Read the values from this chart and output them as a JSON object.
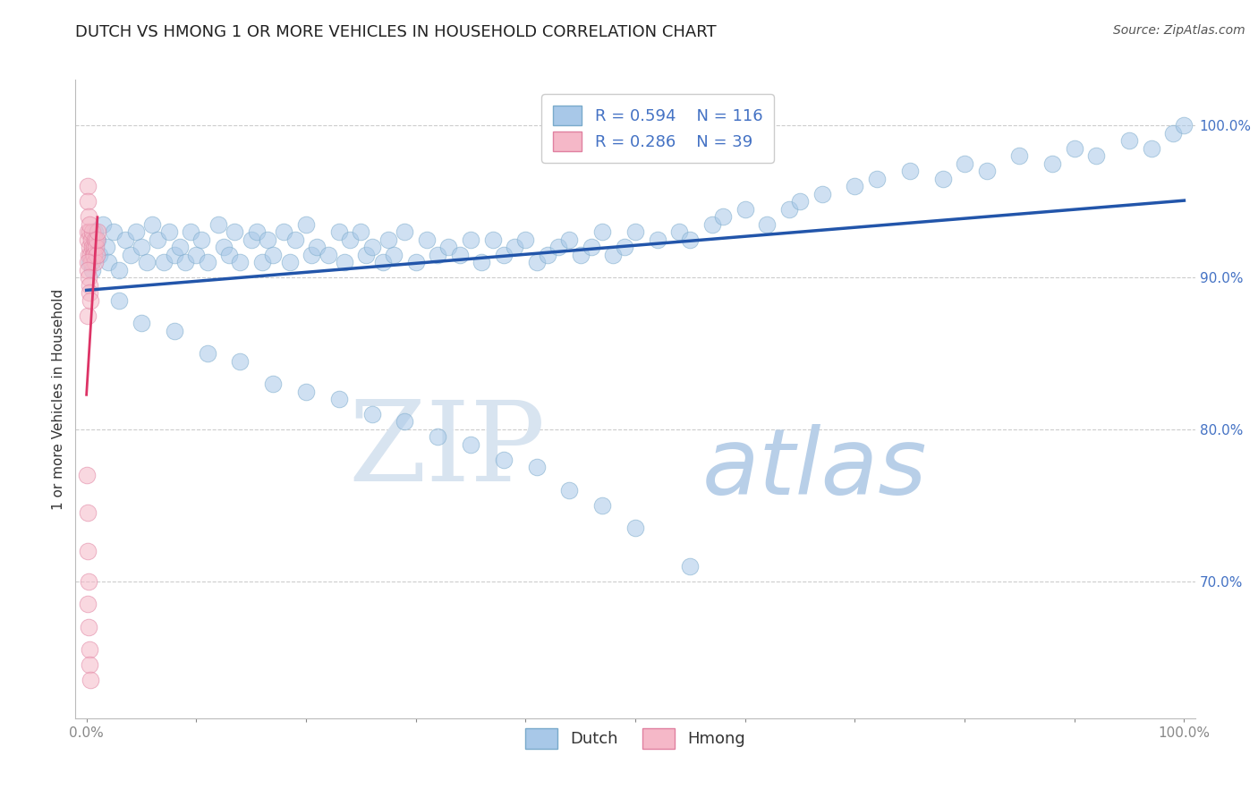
{
  "title": "DUTCH VS HMONG 1 OR MORE VEHICLES IN HOUSEHOLD CORRELATION CHART",
  "source_text": "Source: ZipAtlas.com",
  "ylabel": "1 or more Vehicles in Household",
  "xlim": [
    -1,
    101
  ],
  "ylim": [
    61,
    103
  ],
  "ytick_vals": [
    70.0,
    80.0,
    90.0,
    100.0
  ],
  "ytick_labels": [
    "70.0%",
    "80.0%",
    "90.0%",
    "100.0%"
  ],
  "xtick_vals": [
    0,
    10,
    20,
    30,
    40,
    50,
    60,
    70,
    80,
    90,
    100
  ],
  "xtick_labels": [
    "0.0%",
    "",
    "",
    "",
    "",
    "",
    "",
    "",
    "",
    "",
    "100.0%"
  ],
  "background_color": "#ffffff",
  "watermark_zip": "ZIP",
  "watermark_atlas": "atlas",
  "watermark_zip_color": "#d8e4f0",
  "watermark_atlas_color": "#b8cfe8",
  "dutch_color": "#a8c8e8",
  "dutch_edge_color": "#7aaacb",
  "hmong_color": "#f5b8c8",
  "hmong_edge_color": "#e080a0",
  "trendline_dutch_color": "#2255aa",
  "trendline_hmong_color": "#dd3366",
  "R_dutch": 0.594,
  "N_dutch": 116,
  "R_hmong": 0.286,
  "N_hmong": 39,
  "grid_color": "#cccccc",
  "ytick_color": "#4472c4",
  "title_fontsize": 13,
  "source_fontsize": 10,
  "legend_fontsize": 13,
  "circle_size": 180,
  "circle_alpha": 0.55,
  "dutch_x": [
    0.3,
    0.5,
    0.8,
    1.0,
    1.2,
    1.5,
    1.8,
    2.0,
    2.5,
    3.0,
    3.5,
    4.0,
    4.5,
    5.0,
    5.5,
    6.0,
    6.5,
    7.0,
    7.5,
    8.0,
    8.5,
    9.0,
    9.5,
    10.0,
    10.5,
    11.0,
    12.0,
    12.5,
    13.0,
    13.5,
    14.0,
    15.0,
    15.5,
    16.0,
    16.5,
    17.0,
    18.0,
    18.5,
    19.0,
    20.0,
    20.5,
    21.0,
    22.0,
    23.0,
    23.5,
    24.0,
    25.0,
    25.5,
    26.0,
    27.0,
    27.5,
    28.0,
    29.0,
    30.0,
    31.0,
    32.0,
    33.0,
    34.0,
    35.0,
    36.0,
    37.0,
    38.0,
    39.0,
    40.0,
    41.0,
    42.0,
    43.0,
    44.0,
    45.0,
    46.0,
    47.0,
    48.0,
    49.0,
    50.0,
    52.0,
    54.0,
    55.0,
    57.0,
    58.0,
    60.0,
    62.0,
    64.0,
    65.0,
    67.0,
    70.0,
    72.0,
    75.0,
    78.0,
    80.0,
    82.0,
    85.0,
    88.0,
    90.0,
    92.0,
    95.0,
    97.0,
    99.0,
    100.0,
    3.0,
    5.0,
    8.0,
    11.0,
    14.0,
    17.0,
    20.0,
    23.0,
    26.0,
    29.0,
    32.0,
    35.0,
    38.0,
    41.0,
    44.0,
    47.0,
    50.0,
    55.0
  ],
  "dutch_y": [
    91.0,
    90.5,
    93.0,
    92.5,
    91.5,
    93.5,
    92.0,
    91.0,
    93.0,
    90.5,
    92.5,
    91.5,
    93.0,
    92.0,
    91.0,
    93.5,
    92.5,
    91.0,
    93.0,
    91.5,
    92.0,
    91.0,
    93.0,
    91.5,
    92.5,
    91.0,
    93.5,
    92.0,
    91.5,
    93.0,
    91.0,
    92.5,
    93.0,
    91.0,
    92.5,
    91.5,
    93.0,
    91.0,
    92.5,
    93.5,
    91.5,
    92.0,
    91.5,
    93.0,
    91.0,
    92.5,
    93.0,
    91.5,
    92.0,
    91.0,
    92.5,
    91.5,
    93.0,
    91.0,
    92.5,
    91.5,
    92.0,
    91.5,
    92.5,
    91.0,
    92.5,
    91.5,
    92.0,
    92.5,
    91.0,
    91.5,
    92.0,
    92.5,
    91.5,
    92.0,
    93.0,
    91.5,
    92.0,
    93.0,
    92.5,
    93.0,
    92.5,
    93.5,
    94.0,
    94.5,
    93.5,
    94.5,
    95.0,
    95.5,
    96.0,
    96.5,
    97.0,
    96.5,
    97.5,
    97.0,
    98.0,
    97.5,
    98.5,
    98.0,
    99.0,
    98.5,
    99.5,
    100.0,
    88.5,
    87.0,
    86.5,
    85.0,
    84.5,
    83.0,
    82.5,
    82.0,
    81.0,
    80.5,
    79.5,
    79.0,
    78.0,
    77.5,
    76.0,
    75.0,
    73.5,
    71.0
  ],
  "hmong_x": [
    0.1,
    0.15,
    0.2,
    0.25,
    0.3,
    0.35,
    0.4,
    0.45,
    0.5,
    0.55,
    0.6,
    0.65,
    0.7,
    0.75,
    0.8,
    0.85,
    0.9,
    0.95,
    1.0,
    0.1,
    0.15,
    0.2,
    0.25,
    0.3,
    0.35,
    0.05,
    0.1,
    0.15,
    0.2,
    0.1,
    0.15,
    0.2,
    0.25,
    0.1,
    0.15,
    0.2,
    0.25,
    0.3,
    0.35
  ],
  "hmong_y": [
    93.0,
    92.5,
    91.5,
    92.0,
    93.0,
    91.5,
    92.5,
    91.0,
    92.0,
    93.0,
    91.5,
    92.0,
    91.5,
    92.5,
    91.0,
    92.0,
    91.5,
    92.5,
    93.0,
    87.5,
    68.5,
    67.0,
    65.5,
    64.5,
    63.5,
    77.0,
    74.5,
    72.0,
    70.0,
    96.0,
    95.0,
    94.0,
    93.5,
    91.0,
    90.5,
    90.0,
    89.5,
    89.0,
    88.5
  ]
}
